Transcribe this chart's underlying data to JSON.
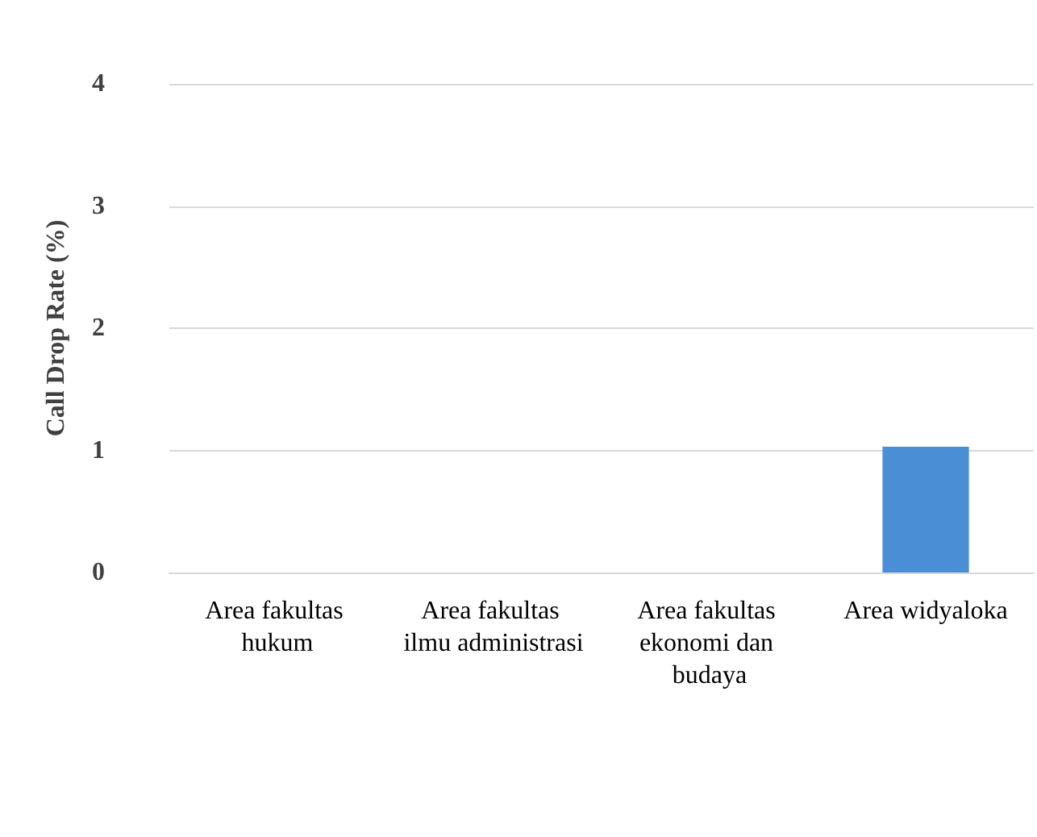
{
  "chart_data": {
    "type": "bar",
    "ylabel": "Call Drop Rate (%)",
    "categories": [
      "Area fakultas hukum",
      "Area fakultas ilmu administrasi",
      "Area fakultas ekonomi dan budaya",
      "Area widyaloka"
    ],
    "values": [
      0,
      0,
      0,
      1.03
    ],
    "color": "#4a8fd6",
    "ylim": [
      0,
      4
    ],
    "yticks": [
      0,
      1,
      2,
      3,
      4
    ],
    "grid": "y"
  }
}
